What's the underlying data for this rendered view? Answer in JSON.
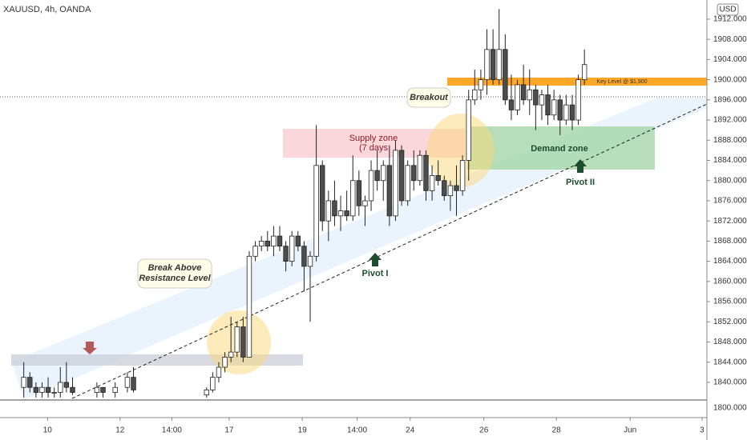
{
  "chart_data": {
    "type": "candlestick",
    "title": "XAUUSD, 4h, OANDA",
    "currency": "USD",
    "up_color": "#ffffff",
    "down_color": "#4d4d4d",
    "x": [
      0,
      1,
      2,
      3,
      4,
      5,
      6,
      7,
      8,
      12,
      13,
      15,
      17,
      18,
      30,
      31,
      32,
      33,
      34,
      35,
      36,
      37,
      38,
      39,
      40,
      41,
      42,
      43,
      44,
      45,
      46,
      47,
      48,
      49,
      50,
      51,
      52,
      53,
      54,
      55,
      56,
      57,
      58,
      59,
      60,
      61,
      62,
      63,
      64,
      65,
      66,
      67,
      68,
      69,
      70,
      71,
      72,
      73,
      74,
      75,
      76,
      77,
      78,
      79,
      80,
      81,
      82,
      83,
      84,
      85,
      86,
      87,
      88,
      89,
      90,
      91,
      92
    ],
    "open": [
      1839,
      1841,
      1839,
      1838,
      1839,
      1838,
      1838,
      1840,
      1839,
      1838,
      1839,
      1838,
      1839,
      1841,
      1837.5,
      1838.5,
      1841,
      1843,
      1845,
      1846,
      1851,
      1845,
      1865,
      1867,
      1868,
      1867,
      1869,
      1867,
      1864,
      1869,
      1867,
      1863,
      1865,
      1883,
      1872,
      1876,
      1873,
      1874,
      1873,
      1880,
      1875,
      1876,
      1882,
      1880,
      1883,
      1873,
      1886,
      1876,
      1883,
      1880,
      1885,
      1878,
      1881,
      1880,
      1877,
      1879,
      1878,
      1884,
      1896,
      1898,
      1900,
      1906,
      1900,
      1906,
      1896,
      1894,
      1899,
      1896,
      1898,
      1895,
      1897,
      1893,
      1896,
      1892,
      1895,
      1892,
      1900
    ],
    "high": [
      1844,
      1842,
      1840,
      1840,
      1841,
      1839,
      1843,
      1844,
      1841,
      1840,
      1839,
      1840,
      1842,
      1843,
      1839,
      1842,
      1844,
      1846,
      1853,
      1852,
      1853,
      1866,
      1868,
      1869,
      1870,
      1871,
      1871,
      1868,
      1870,
      1870,
      1868,
      1866,
      1891,
      1884,
      1878,
      1880,
      1877,
      1878,
      1885,
      1882,
      1877,
      1884,
      1886,
      1884,
      1887,
      1888,
      1887,
      1884,
      1886,
      1886,
      1886,
      1883,
      1884,
      1881,
      1880,
      1883,
      1885,
      1898,
      1902,
      1902,
      1910,
      1910,
      1914,
      1909,
      1901,
      1900,
      1903,
      1902,
      1899,
      1898,
      1899,
      1898,
      1897,
      1897,
      1897,
      1901,
      1906
    ],
    "low": [
      1837,
      1838,
      1837,
      1837,
      1837,
      1837,
      1837,
      1838,
      1837.5,
      1837,
      1837,
      1837,
      1838,
      1838,
      1837,
      1838,
      1840,
      1842,
      1844,
      1845,
      1844,
      1845,
      1864,
      1866,
      1866,
      1865,
      1866,
      1862,
      1863,
      1866,
      1858,
      1852,
      1864,
      1870,
      1868,
      1871,
      1870,
      1872,
      1872,
      1873,
      1871,
      1874,
      1878,
      1876,
      1871,
      1872,
      1875,
      1875,
      1878,
      1879,
      1876,
      1876,
      1879,
      1876,
      1874,
      1873,
      1877,
      1880,
      1895,
      1896,
      1897,
      1899,
      1899,
      1895,
      1892,
      1893,
      1895,
      1893,
      1890,
      1892,
      1891,
      1892,
      1889,
      1891,
      1890,
      1891,
      1899
    ],
    "close": [
      1841,
      1839,
      1838,
      1839,
      1838,
      1838,
      1840,
      1839,
      1838,
      1839,
      1838,
      1839,
      1841,
      1838.5,
      1838.5,
      1841,
      1843,
      1845,
      1846,
      1851,
      1845,
      1865,
      1867,
      1868,
      1867,
      1869,
      1867,
      1864,
      1869,
      1867,
      1863,
      1865,
      1883,
      1872,
      1876,
      1873,
      1874,
      1873,
      1880,
      1875,
      1876,
      1882,
      1880,
      1883,
      1873,
      1886,
      1876,
      1883,
      1880,
      1885,
      1878,
      1881,
      1880,
      1877,
      1879,
      1878,
      1884,
      1896,
      1898,
      1900,
      1906,
      1900,
      1906,
      1896,
      1894,
      1899,
      1896,
      1898,
      1895,
      1897,
      1893,
      1896,
      1892,
      1895,
      1892,
      1900,
      1903
    ],
    "xlim": [
      -3.9,
      112.1
    ],
    "ylim": [
      1836.5,
      1915.8
    ],
    "yticks": [
      {
        "value": 1840,
        "label": "1840.000"
      },
      {
        "value": 1844,
        "label": "1844.000"
      },
      {
        "value": 1848,
        "label": "1848.000"
      },
      {
        "value": 1852,
        "label": "1852.000"
      },
      {
        "value": 1856,
        "label": "1856.000"
      },
      {
        "value": 1860,
        "label": "1860.000"
      },
      {
        "value": 1864,
        "label": "1864.000"
      },
      {
        "value": 1868,
        "label": "1868.000"
      },
      {
        "value": 1872,
        "label": "1872.000"
      },
      {
        "value": 1876,
        "label": "1876.000"
      },
      {
        "value": 1880,
        "label": "1880.000"
      },
      {
        "value": 1884,
        "label": "1884.000"
      },
      {
        "value": 1888,
        "label": "1888.000"
      },
      {
        "value": 1892,
        "label": "1892.000"
      },
      {
        "value": 1896,
        "label": "1896.000"
      },
      {
        "value": 1900,
        "label": "1900.000"
      },
      {
        "value": 1904,
        "label": "1904.000"
      },
      {
        "value": 1908,
        "label": "1908.000"
      },
      {
        "value": 1912,
        "label": "1912.000"
      }
    ],
    "lower_tick": {
      "value": 1800,
      "label": "1800.000"
    },
    "xticks": [
      {
        "value": 3.9,
        "label": "10"
      },
      {
        "value": 15.8,
        "label": "12"
      },
      {
        "value": 24.3,
        "label": "14:00"
      },
      {
        "value": 33.7,
        "label": "17"
      },
      {
        "value": 45.7,
        "label": "19"
      },
      {
        "value": 54.7,
        "label": "14:00"
      },
      {
        "value": 63.4,
        "label": "24"
      },
      {
        "value": 75.5,
        "label": "26"
      },
      {
        "value": 87.4,
        "label": "28"
      },
      {
        "value": 99.5,
        "label": "Jun"
      },
      {
        "value": 111.3,
        "label": "3"
      }
    ],
    "annotations": {
      "supply_zone": "Supply zone",
      "supply_days": "(7 days",
      "demand_zone": "Demand zone",
      "breakout": "Breakout",
      "break_above_1": "Break Above",
      "break_above_2": "Resistance Level",
      "pivot_1": "Pivot I",
      "pivot_2": "Pivot II",
      "key_level": "Key Level @ $1,900"
    }
  }
}
